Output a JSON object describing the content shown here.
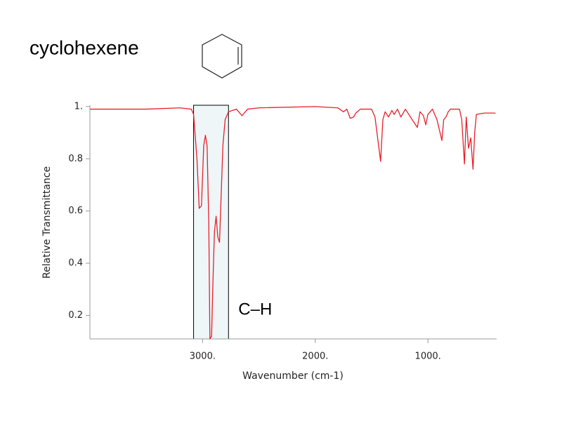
{
  "chart_data": {
    "type": "line",
    "title": "cyclohexene",
    "x_label": "Wavenumber (cm-1)",
    "y_label": "Relative Transmittance",
    "xlim": [
      4000,
      390
    ],
    "ylim": [
      0.11,
      1.005
    ],
    "xticks": [
      {
        "value": 3000,
        "label": "3000."
      },
      {
        "value": 2000,
        "label": "2000."
      },
      {
        "value": 1000,
        "label": "1000."
      }
    ],
    "yticks": [
      {
        "value": 1,
        "label": "1."
      },
      0.8,
      0.6,
      0.4,
      0.2
    ],
    "annotations": [
      {
        "text": "C–H",
        "x_range": [
          3080,
          2770
        ],
        "color": "#eef6f8"
      }
    ],
    "x": [
      4000,
      3500,
      3200,
      3100,
      3080,
      3050,
      3030,
      3010,
      2990,
      2975,
      2960,
      2945,
      2935,
      2920,
      2910,
      2895,
      2880,
      2865,
      2850,
      2840,
      2820,
      2800,
      2770,
      2700,
      2650,
      2600,
      2500,
      2000,
      1800,
      1750,
      1720,
      1690,
      1660,
      1640,
      1600,
      1500,
      1470,
      1420,
      1400,
      1380,
      1350,
      1320,
      1300,
      1270,
      1240,
      1200,
      1140,
      1094,
      1070,
      1040,
      1019,
      1000,
      960,
      920,
      876,
      860,
      840,
      820,
      800,
      720,
      700,
      676,
      660,
      640,
      620,
      600,
      585,
      570,
      500,
      400
    ],
    "series": [
      {
        "name": "cyclohexene",
        "color": "#e8202a",
        "values": [
          0.99,
          0.99,
          0.995,
          0.99,
          0.97,
          0.8,
          0.61,
          0.62,
          0.85,
          0.89,
          0.85,
          0.55,
          0.11,
          0.12,
          0.3,
          0.52,
          0.58,
          0.5,
          0.48,
          0.6,
          0.85,
          0.95,
          0.98,
          0.99,
          0.965,
          0.99,
          0.995,
          1.0,
          0.995,
          0.98,
          0.99,
          0.955,
          0.96,
          0.975,
          0.99,
          0.99,
          0.96,
          0.79,
          0.95,
          0.98,
          0.96,
          0.985,
          0.97,
          0.99,
          0.96,
          0.99,
          0.95,
          0.92,
          0.98,
          0.965,
          0.93,
          0.97,
          0.99,
          0.95,
          0.87,
          0.95,
          0.96,
          0.98,
          0.99,
          0.99,
          0.95,
          0.78,
          0.96,
          0.84,
          0.88,
          0.76,
          0.9,
          0.97,
          0.975,
          0.975
        ]
      }
    ]
  }
}
